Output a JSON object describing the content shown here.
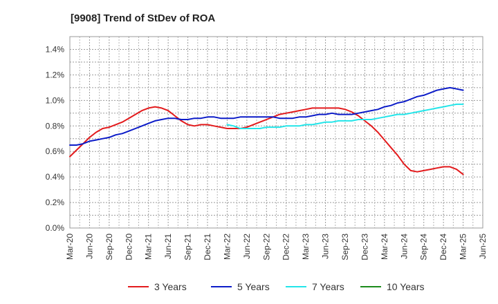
{
  "chart_data": {
    "type": "line",
    "title": "[9908]  Trend of StDev of ROA",
    "xlabel": "",
    "ylabel": "",
    "x_ticks": [
      "Mar-20",
      "Jun-20",
      "Sep-20",
      "Dec-20",
      "Mar-21",
      "Jun-21",
      "Sep-21",
      "Dec-21",
      "Mar-22",
      "Jun-22",
      "Sep-22",
      "Dec-22",
      "Mar-23",
      "Jun-23",
      "Sep-23",
      "Dec-23",
      "Mar-24",
      "Jun-24",
      "Sep-24",
      "Dec-24",
      "Mar-25",
      "Jun-25"
    ],
    "y_ticks": [
      "0.0%",
      "0.2%",
      "0.4%",
      "0.6%",
      "0.8%",
      "1.0%",
      "1.2%",
      "1.4%"
    ],
    "ylim": [
      0,
      1.5
    ],
    "grid": true,
    "legend_position": "bottom",
    "series": [
      {
        "name": "3 Years",
        "color": "#e31a1c",
        "points": [
          [
            "Mar-20",
            0.56
          ],
          [
            "Apr-20",
            0.61
          ],
          [
            "May-20",
            0.66
          ],
          [
            "Jun-20",
            0.71
          ],
          [
            "Jul-20",
            0.75
          ],
          [
            "Aug-20",
            0.78
          ],
          [
            "Sep-20",
            0.79
          ],
          [
            "Oct-20",
            0.81
          ],
          [
            "Nov-20",
            0.83
          ],
          [
            "Dec-20",
            0.86
          ],
          [
            "Jan-21",
            0.89
          ],
          [
            "Feb-21",
            0.92
          ],
          [
            "Mar-21",
            0.94
          ],
          [
            "Apr-21",
            0.95
          ],
          [
            "May-21",
            0.94
          ],
          [
            "Jun-21",
            0.92
          ],
          [
            "Jul-21",
            0.88
          ],
          [
            "Aug-21",
            0.84
          ],
          [
            "Sep-21",
            0.81
          ],
          [
            "Oct-21",
            0.8
          ],
          [
            "Nov-21",
            0.81
          ],
          [
            "Dec-21",
            0.81
          ],
          [
            "Jan-22",
            0.8
          ],
          [
            "Feb-22",
            0.79
          ],
          [
            "Mar-22",
            0.78
          ],
          [
            "Apr-22",
            0.78
          ],
          [
            "May-22",
            0.78
          ],
          [
            "Jun-22",
            0.79
          ],
          [
            "Jul-22",
            0.81
          ],
          [
            "Aug-22",
            0.83
          ],
          [
            "Sep-22",
            0.85
          ],
          [
            "Oct-22",
            0.87
          ],
          [
            "Nov-22",
            0.89
          ],
          [
            "Dec-22",
            0.9
          ],
          [
            "Jan-23",
            0.91
          ],
          [
            "Feb-23",
            0.92
          ],
          [
            "Mar-23",
            0.93
          ],
          [
            "Apr-23",
            0.94
          ],
          [
            "May-23",
            0.94
          ],
          [
            "Jun-23",
            0.94
          ],
          [
            "Jul-23",
            0.94
          ],
          [
            "Aug-23",
            0.94
          ],
          [
            "Sep-23",
            0.93
          ],
          [
            "Oct-23",
            0.91
          ],
          [
            "Nov-23",
            0.88
          ],
          [
            "Dec-23",
            0.84
          ],
          [
            "Jan-24",
            0.8
          ],
          [
            "Feb-24",
            0.75
          ],
          [
            "Mar-24",
            0.69
          ],
          [
            "Apr-24",
            0.63
          ],
          [
            "May-24",
            0.57
          ],
          [
            "Jun-24",
            0.5
          ],
          [
            "Jul-24",
            0.45
          ],
          [
            "Aug-24",
            0.44
          ],
          [
            "Sep-24",
            0.45
          ],
          [
            "Oct-24",
            0.46
          ],
          [
            "Nov-24",
            0.47
          ],
          [
            "Dec-24",
            0.48
          ],
          [
            "Jan-25",
            0.48
          ],
          [
            "Feb-25",
            0.46
          ],
          [
            "Mar-25",
            0.42
          ]
        ]
      },
      {
        "name": "5 Years",
        "color": "#0b1bc8",
        "points": [
          [
            "Mar-20",
            0.65
          ],
          [
            "Apr-20",
            0.65
          ],
          [
            "May-20",
            0.66
          ],
          [
            "Jun-20",
            0.68
          ],
          [
            "Jul-20",
            0.69
          ],
          [
            "Aug-20",
            0.7
          ],
          [
            "Sep-20",
            0.71
          ],
          [
            "Oct-20",
            0.73
          ],
          [
            "Nov-20",
            0.74
          ],
          [
            "Dec-20",
            0.76
          ],
          [
            "Jan-21",
            0.78
          ],
          [
            "Feb-21",
            0.8
          ],
          [
            "Mar-21",
            0.82
          ],
          [
            "Apr-21",
            0.84
          ],
          [
            "May-21",
            0.85
          ],
          [
            "Jun-21",
            0.86
          ],
          [
            "Jul-21",
            0.86
          ],
          [
            "Aug-21",
            0.85
          ],
          [
            "Sep-21",
            0.85
          ],
          [
            "Oct-21",
            0.86
          ],
          [
            "Nov-21",
            0.86
          ],
          [
            "Dec-21",
            0.87
          ],
          [
            "Jan-22",
            0.87
          ],
          [
            "Feb-22",
            0.86
          ],
          [
            "Mar-22",
            0.86
          ],
          [
            "Apr-22",
            0.86
          ],
          [
            "May-22",
            0.87
          ],
          [
            "Jun-22",
            0.87
          ],
          [
            "Jul-22",
            0.87
          ],
          [
            "Aug-22",
            0.87
          ],
          [
            "Sep-22",
            0.87
          ],
          [
            "Oct-22",
            0.87
          ],
          [
            "Nov-22",
            0.86
          ],
          [
            "Dec-22",
            0.86
          ],
          [
            "Jan-23",
            0.86
          ],
          [
            "Feb-23",
            0.87
          ],
          [
            "Mar-23",
            0.87
          ],
          [
            "Apr-23",
            0.88
          ],
          [
            "May-23",
            0.89
          ],
          [
            "Jun-23",
            0.89
          ],
          [
            "Jul-23",
            0.9
          ],
          [
            "Aug-23",
            0.89
          ],
          [
            "Sep-23",
            0.89
          ],
          [
            "Oct-23",
            0.89
          ],
          [
            "Nov-23",
            0.9
          ],
          [
            "Dec-23",
            0.91
          ],
          [
            "Jan-24",
            0.92
          ],
          [
            "Feb-24",
            0.93
          ],
          [
            "Mar-24",
            0.95
          ],
          [
            "Apr-24",
            0.96
          ],
          [
            "May-24",
            0.98
          ],
          [
            "Jun-24",
            0.99
          ],
          [
            "Jul-24",
            1.01
          ],
          [
            "Aug-24",
            1.03
          ],
          [
            "Sep-24",
            1.04
          ],
          [
            "Oct-24",
            1.06
          ],
          [
            "Nov-24",
            1.08
          ],
          [
            "Dec-24",
            1.09
          ],
          [
            "Jan-25",
            1.1
          ],
          [
            "Feb-25",
            1.09
          ],
          [
            "Mar-25",
            1.08
          ]
        ]
      },
      {
        "name": "7 Years",
        "color": "#22e5e9",
        "points": [
          [
            "Mar-22",
            0.81
          ],
          [
            "Apr-22",
            0.8
          ],
          [
            "May-22",
            0.78
          ],
          [
            "Jun-22",
            0.78
          ],
          [
            "Jul-22",
            0.78
          ],
          [
            "Aug-22",
            0.78
          ],
          [
            "Sep-22",
            0.79
          ],
          [
            "Oct-22",
            0.79
          ],
          [
            "Nov-22",
            0.79
          ],
          [
            "Dec-22",
            0.8
          ],
          [
            "Jan-23",
            0.8
          ],
          [
            "Feb-23",
            0.8
          ],
          [
            "Mar-23",
            0.81
          ],
          [
            "Apr-23",
            0.81
          ],
          [
            "May-23",
            0.82
          ],
          [
            "Jun-23",
            0.83
          ],
          [
            "Jul-23",
            0.83
          ],
          [
            "Aug-23",
            0.84
          ],
          [
            "Sep-23",
            0.84
          ],
          [
            "Oct-23",
            0.84
          ],
          [
            "Nov-23",
            0.85
          ],
          [
            "Dec-23",
            0.85
          ],
          [
            "Jan-24",
            0.85
          ],
          [
            "Feb-24",
            0.86
          ],
          [
            "Mar-24",
            0.87
          ],
          [
            "Apr-24",
            0.88
          ],
          [
            "May-24",
            0.89
          ],
          [
            "Jun-24",
            0.89
          ],
          [
            "Jul-24",
            0.9
          ],
          [
            "Aug-24",
            0.91
          ],
          [
            "Sep-24",
            0.92
          ],
          [
            "Oct-24",
            0.93
          ],
          [
            "Nov-24",
            0.94
          ],
          [
            "Dec-24",
            0.95
          ],
          [
            "Jan-25",
            0.96
          ],
          [
            "Feb-25",
            0.97
          ],
          [
            "Mar-25",
            0.97
          ]
        ]
      },
      {
        "name": "10 Years",
        "color": "#1a8a1a",
        "points": []
      }
    ]
  }
}
